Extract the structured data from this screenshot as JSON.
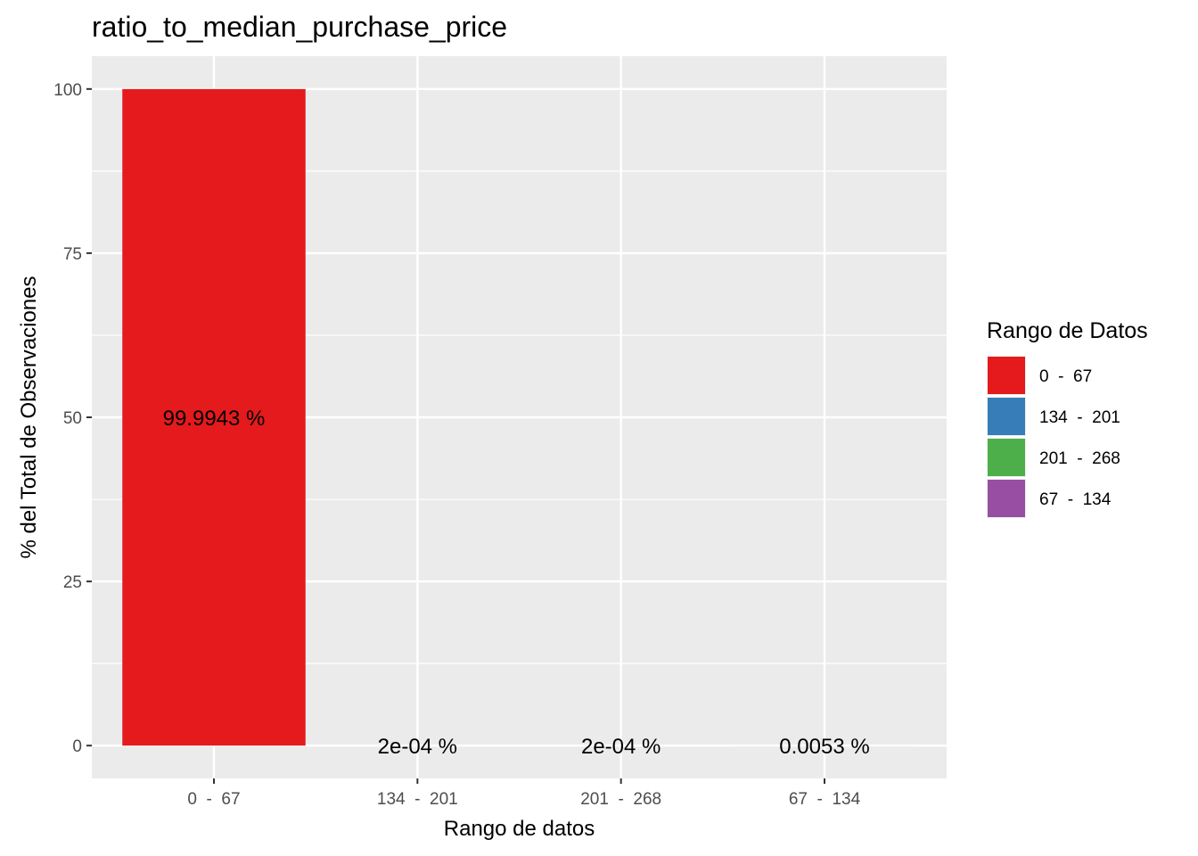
{
  "chart_data": {
    "type": "bar",
    "title": "ratio_to_median_purchase_price",
    "xlabel": "Rango de datos",
    "ylabel": "% del Total de Observaciones",
    "categories": [
      "0  -  67",
      "134  -  201",
      "201  -  268",
      "67  -  134"
    ],
    "values": [
      99.9943,
      0.0002,
      0.0002,
      0.0053
    ],
    "value_labels": [
      "99.9943 %",
      "2e-04 %",
      "2e-04 %",
      "0.0053 %"
    ],
    "colors": [
      "#E41A1C",
      "#377EB8",
      "#4DAF4A",
      "#984EA3"
    ],
    "ylim": [
      -5,
      105
    ],
    "yticks": [
      0,
      25,
      50,
      75,
      100
    ],
    "grid": true,
    "legend": {
      "title": "Rango de Datos",
      "position": "right",
      "entries": [
        "0  -  67",
        "134  -  201",
        "201  -  268",
        "67  -  134"
      ]
    }
  }
}
